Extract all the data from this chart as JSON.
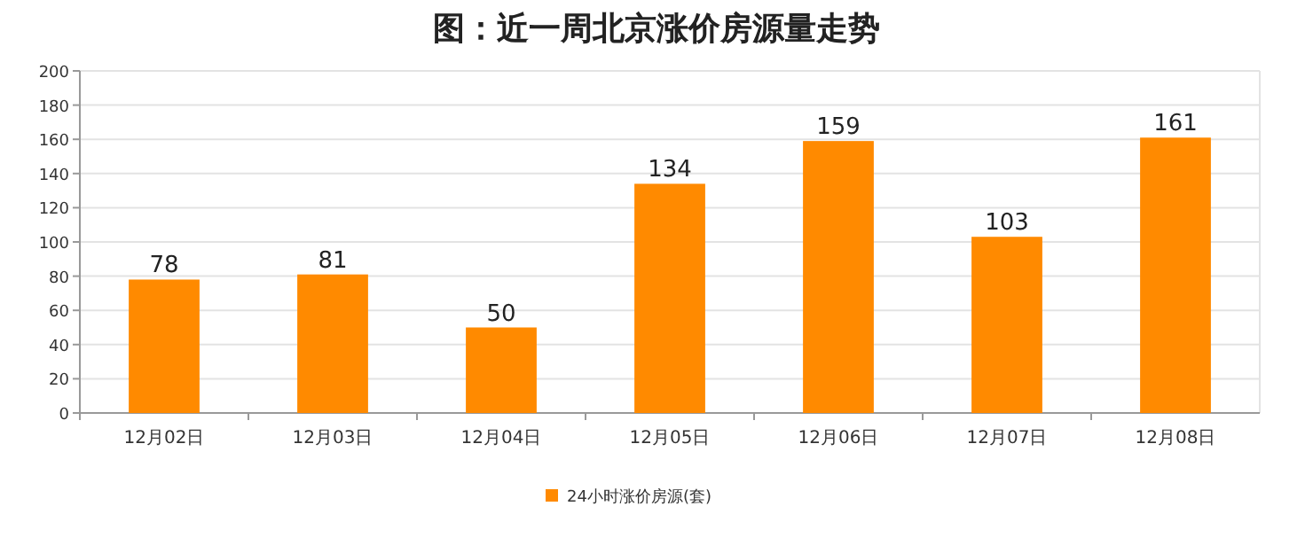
{
  "chart_data": {
    "type": "bar",
    "title": "图：近一周北京涨价房源量走势",
    "categories": [
      "12月02日",
      "12月03日",
      "12月04日",
      "12月05日",
      "12月06日",
      "12月07日",
      "12月08日"
    ],
    "series": [
      {
        "name": "24小时涨价房源(套)",
        "color": "#ff8a00",
        "values": [
          78,
          81,
          50,
          134,
          159,
          103,
          161
        ]
      }
    ],
    "ylim": [
      0,
      200
    ],
    "yticks": [
      0,
      20,
      40,
      60,
      80,
      100,
      120,
      140,
      160,
      180,
      200
    ],
    "grid": "y",
    "legend": "bottom",
    "data_labels": true
  }
}
